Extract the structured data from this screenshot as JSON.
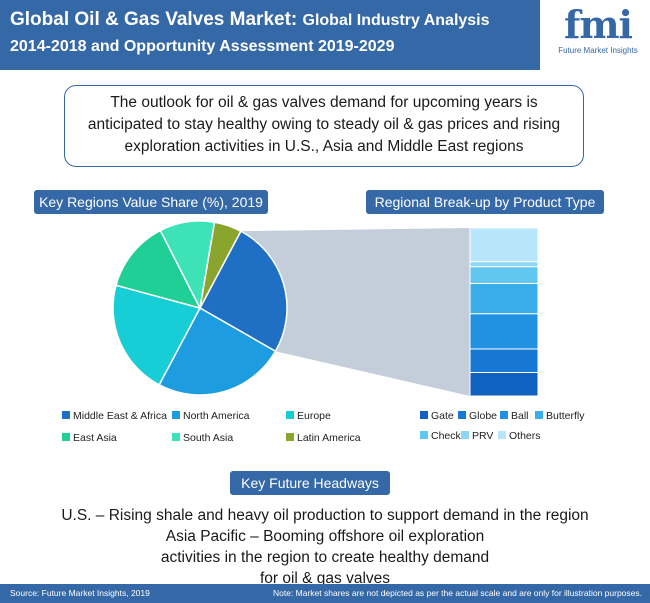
{
  "header": {
    "title_main": "Global Oil & Gas Valves Market:",
    "title_sub": "Global Industry Analysis",
    "title_line2": "2014-2018 and  Opportunity Assessment 2019-2029"
  },
  "logo": {
    "word": "fmi",
    "tagline": "Future Market Insights"
  },
  "outlook": {
    "text": "The outlook for oil & gas valves demand for upcoming years is anticipated to stay healthy owing to steady oil & gas prices and rising exploration activities in U.S., Asia and Middle East regions"
  },
  "pie_title": "Key Regions Value Share (%), 2019",
  "bar_title": "Regional Break-up by Product Type",
  "chart_data": [
    {
      "type": "pie",
      "title": "Key Regions Value Share (%), 2019",
      "series": [
        {
          "name": "Middle East & Africa",
          "value": 25,
          "color": "#1f6fc5"
        },
        {
          "name": "North America",
          "value": 24,
          "color": "#1d9de0"
        },
        {
          "name": "Europe",
          "value": 21,
          "color": "#17cdd6"
        },
        {
          "name": "East Asia",
          "value": 13,
          "color": "#1fcf95"
        },
        {
          "name": "South Asia",
          "value": 10,
          "color": "#3de3b6"
        },
        {
          "name": "Latin America",
          "value": 5,
          "color": "#8aa52d"
        }
      ]
    },
    {
      "type": "bar",
      "title": "Regional Break-up by Product Type",
      "stacked": true,
      "series": [
        {
          "name": "Gate",
          "value": 14,
          "color": "#0f62c0"
        },
        {
          "name": "Globe",
          "value": 14,
          "color": "#1778d3"
        },
        {
          "name": "Ball",
          "value": 21,
          "color": "#2192e1"
        },
        {
          "name": "Butterfly",
          "value": 18,
          "color": "#3aaeea"
        },
        {
          "name": "Check",
          "value": 10,
          "color": "#61c6f0"
        },
        {
          "name": "PRV",
          "value": 3,
          "color": "#8bd7f5"
        },
        {
          "name": "Others",
          "value": 20,
          "color": "#b7e6fa"
        }
      ]
    }
  ],
  "headways_title": "Key Future Headways",
  "headways": [
    "U.S. – Rising shale and heavy oil production to support demand in the region",
    "Asia Pacific – Booming offshore oil exploration activities in the region to create healthy demand for oil & gas valves"
  ],
  "footer": {
    "source": "Source: Future Market Insights, 2019",
    "note": "Note: Market shares are not depicted as per the actual scale and are only for illustration purposes."
  }
}
